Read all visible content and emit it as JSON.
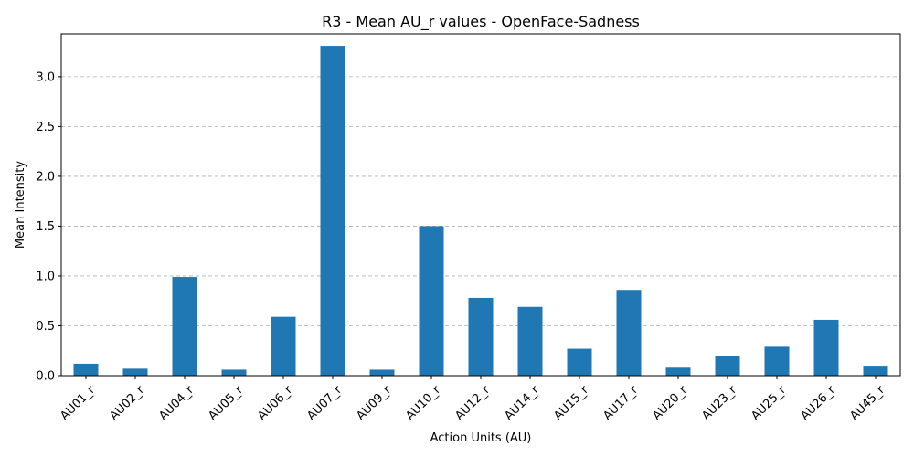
{
  "chart_data": {
    "type": "bar",
    "title": "R3 - Mean AU_r values - OpenFace-Sadness",
    "xlabel": "Action Units (AU)",
    "ylabel": "Mean Intensity",
    "categories": [
      "AU01_r",
      "AU02_r",
      "AU04_r",
      "AU05_r",
      "AU06_r",
      "AU07_r",
      "AU09_r",
      "AU10_r",
      "AU12_r",
      "AU14_r",
      "AU15_r",
      "AU17_r",
      "AU20_r",
      "AU23_r",
      "AU25_r",
      "AU26_r",
      "AU45_r"
    ],
    "values": [
      0.12,
      0.07,
      0.99,
      0.06,
      0.59,
      3.31,
      0.06,
      1.5,
      0.78,
      0.69,
      0.27,
      0.86,
      0.08,
      0.2,
      0.29,
      0.56,
      0.1
    ],
    "ylim": [
      0,
      3.43
    ],
    "yticks": [
      0.0,
      0.5,
      1.0,
      1.5,
      2.0,
      2.5,
      3.0
    ],
    "ytick_labels": [
      "0.0",
      "0.5",
      "1.0",
      "1.5",
      "2.0",
      "2.5",
      "3.0"
    ],
    "grid": "y-dashed",
    "bar_color": "#1f77b4",
    "grid_color": "#b0b0b0"
  }
}
